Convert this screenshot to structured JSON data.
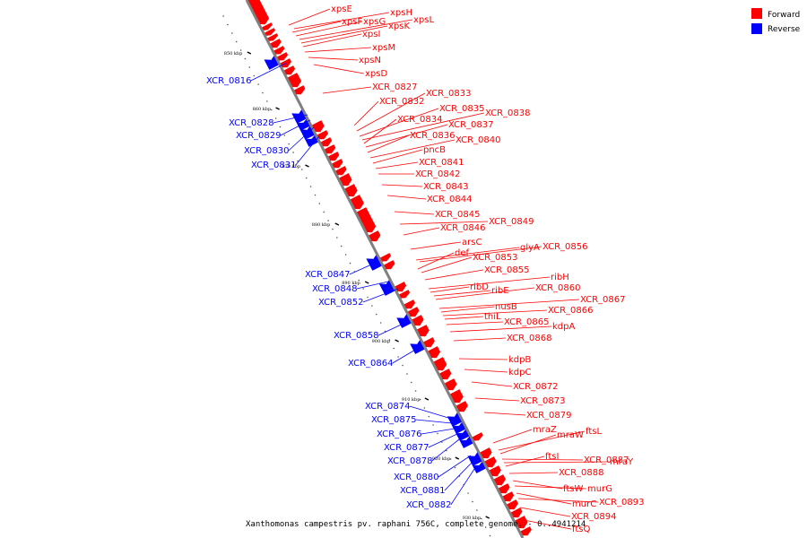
{
  "caption": "Xanthomonas campestris pv. raphani 756C, complete genome. - 0..4941214",
  "legend": [
    {
      "label": "Forward",
      "color": "#ff0000"
    },
    {
      "label": "Reverse",
      "color": "#0000ff"
    }
  ],
  "colors": {
    "forward": "#ff0000",
    "reverse": "#0000ff",
    "backbone": "#808080"
  },
  "axis": {
    "kbp_start": 843,
    "kbp_end": 933,
    "ticks": [
      "850 kbp",
      "860 kbp",
      "870 kbp",
      "880 kbp",
      "890 kbp",
      "900 kbp",
      "910 kbp",
      "920 kbp",
      "930 kbp"
    ]
  },
  "forward_labels": [
    "xpsE",
    "xpsH",
    "xpsF",
    "xpsG",
    "xpsL",
    "xpsK",
    "xpsI",
    "xpsM",
    "xpsN",
    "xpsD",
    "XCR_0827",
    "XCR_0832",
    "XCR_0833",
    "XCR_0835",
    "XCR_0838",
    "XCR_0834",
    "XCR_0837",
    "XCR_0836",
    "XCR_0840",
    "pncB",
    "XCR_0841",
    "XCR_0842",
    "XCR_0843",
    "XCR_0844",
    "XCR_0845",
    "XCR_0849",
    "XCR_0846",
    "arsC",
    "glyA",
    "XCR_0856",
    "def",
    "XCR_0853",
    "XCR_0855",
    "ribH",
    "ribD",
    "ribE",
    "XCR_0860",
    "XCR_0867",
    "nusB",
    "XCR_0866",
    "thiL",
    "XCR_0865",
    "kdpA",
    "XCR_0868",
    "kdpB",
    "kdpC",
    "XCR_0872",
    "XCR_0873",
    "XCR_0879",
    "mraZ",
    "ftsL",
    "mraW",
    "XCR_0887",
    "mraY",
    "ftsI",
    "XCR_0888",
    "ftsW",
    "murG",
    "murC",
    "XCR_0893",
    "XCR_0894",
    "ftsQ"
  ],
  "reverse_labels": [
    "XCR_0816",
    "XCR_0828",
    "XCR_0829",
    "XCR_0830",
    "XCR_0831",
    "XCR_0847",
    "XCR_0848",
    "XCR_0852",
    "XCR_0858",
    "XCR_0864",
    "XCR_0874",
    "XCR_0875",
    "XCR_0876",
    "XCR_0877",
    "XCR_0878",
    "XCR_0880",
    "XCR_0881",
    "XCR_0882"
  ]
}
